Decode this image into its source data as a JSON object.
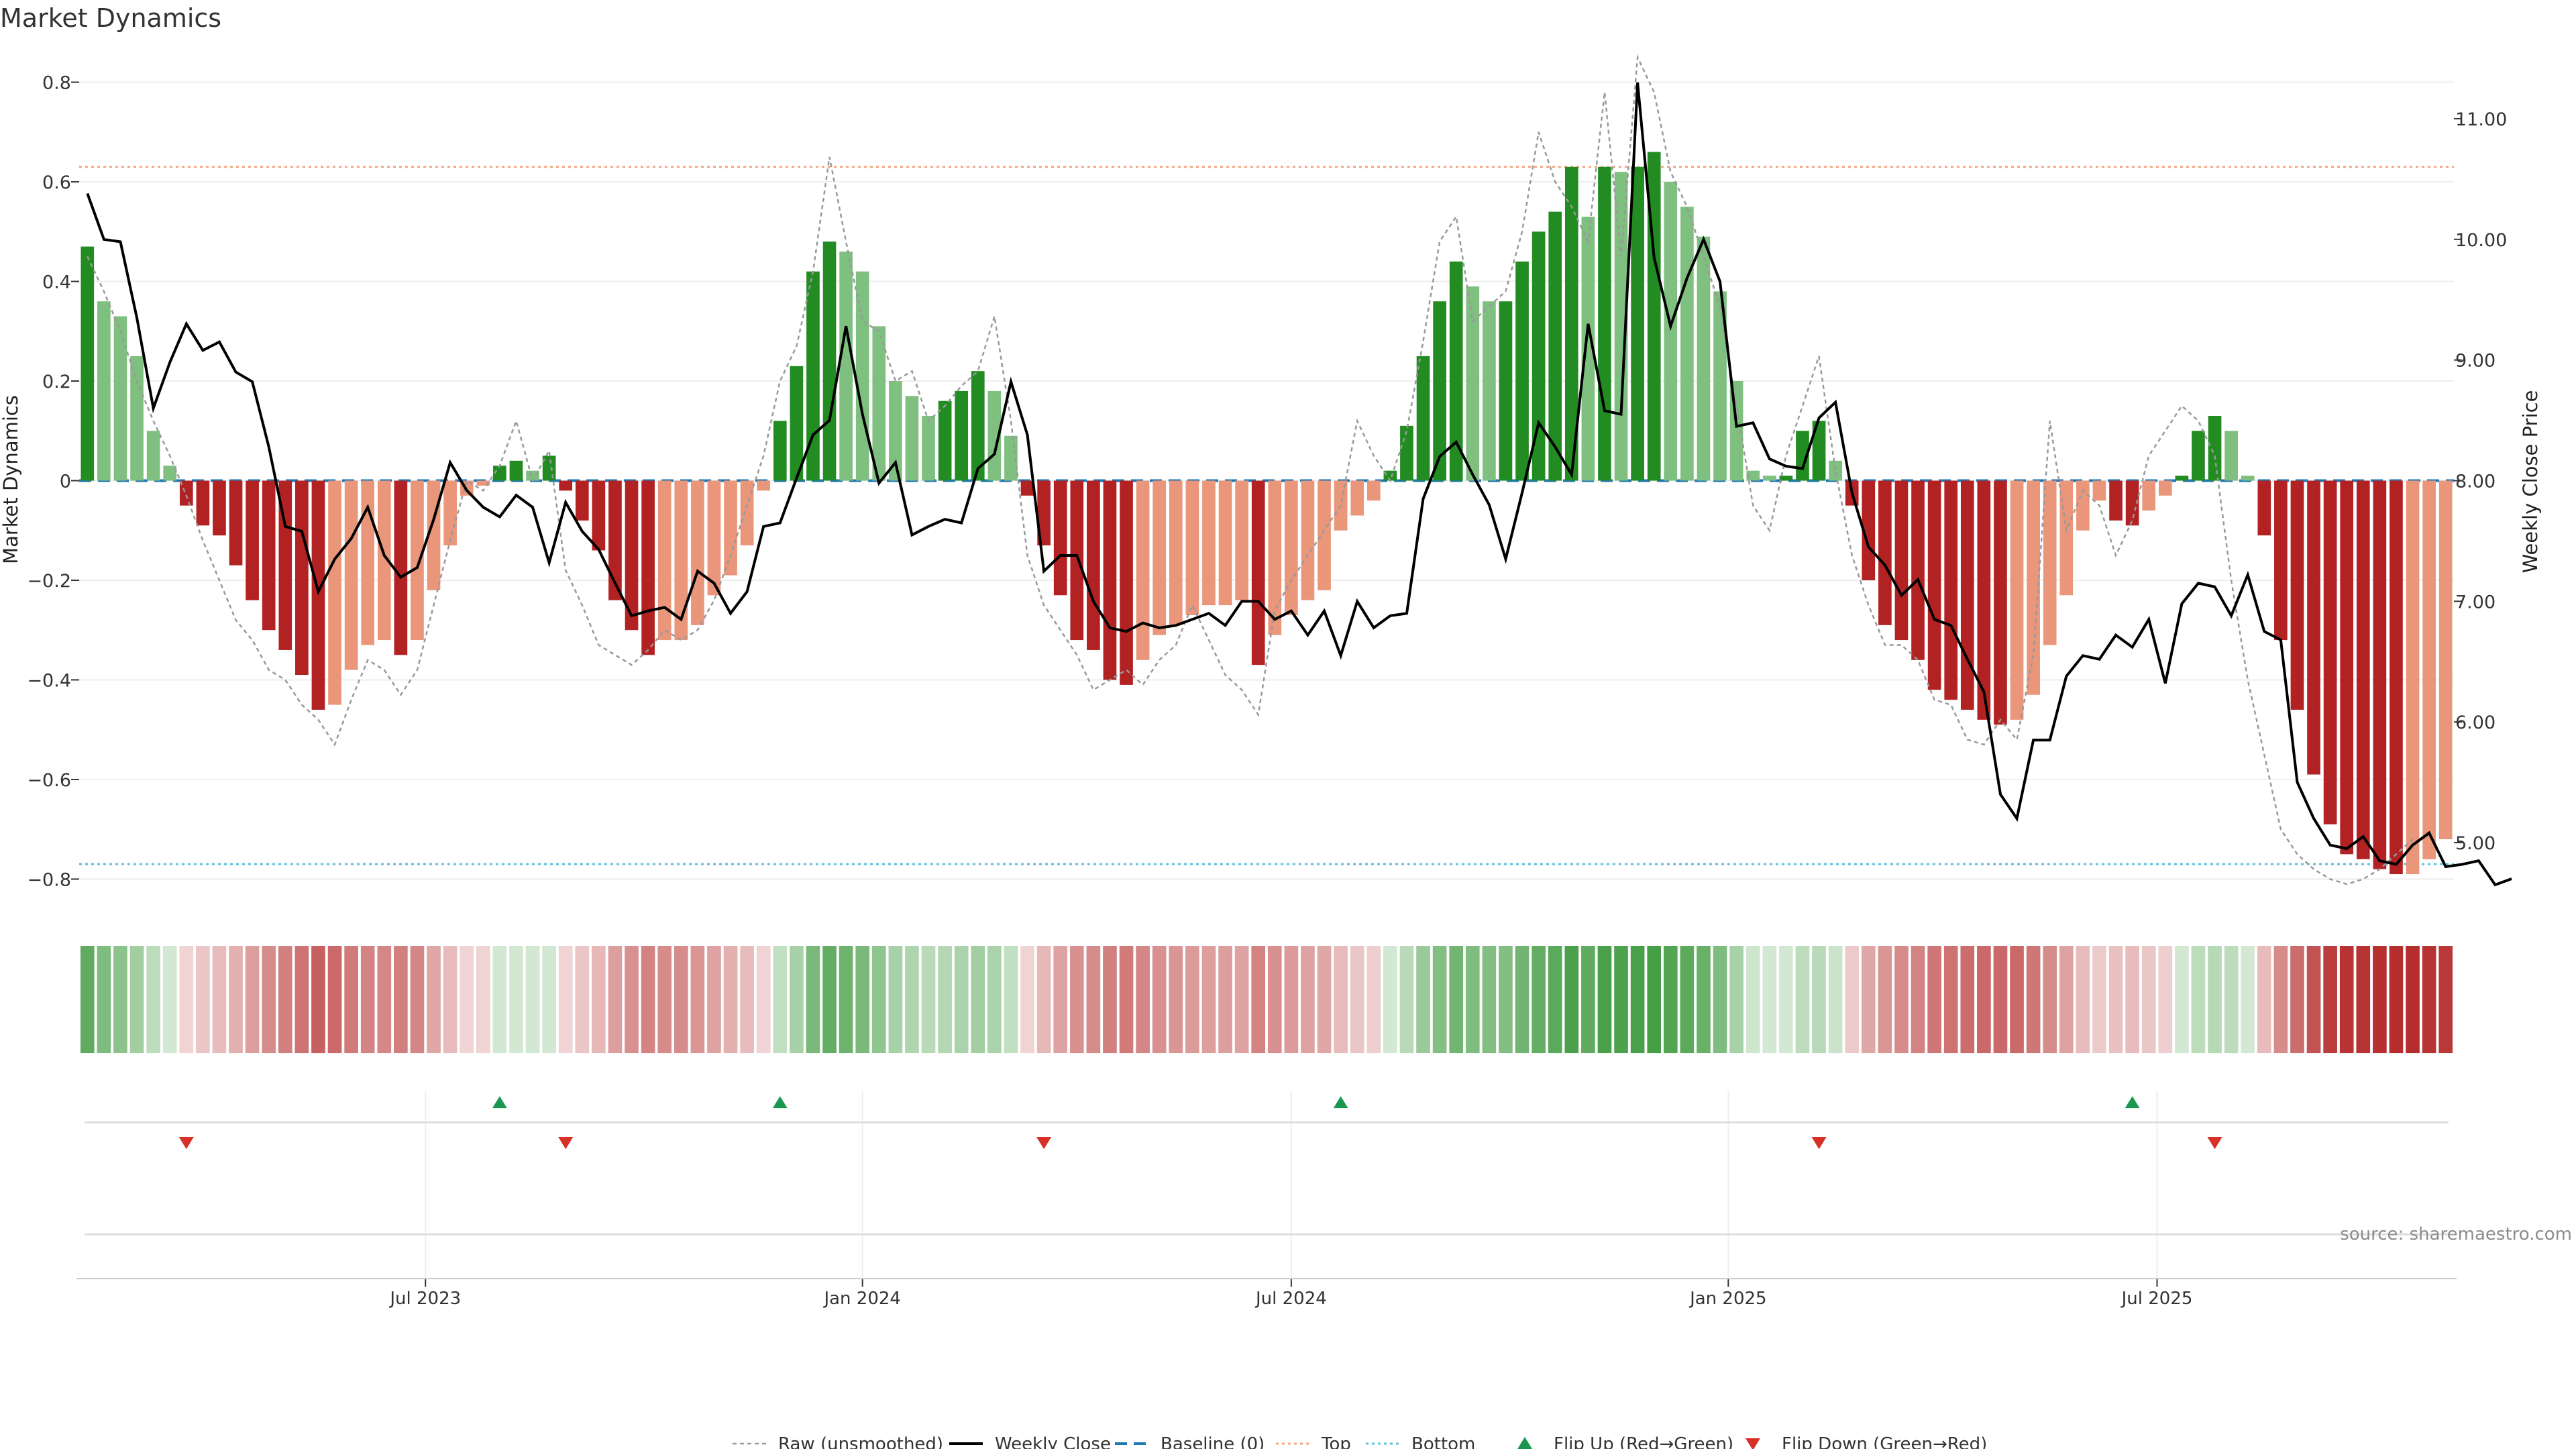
{
  "chart_data": {
    "type": "bar",
    "title": "Market Dynamics",
    "ylabel": "Market Dynamics",
    "y2label": "Weekly Close Price",
    "ylim": [
      -0.86,
      0.86
    ],
    "y2lim": [
      4.45,
      11.55
    ],
    "yticks": [
      -0.8,
      -0.6,
      -0.4,
      -0.2,
      0,
      0.2,
      0.4,
      0.6,
      0.8
    ],
    "ytick_labels": [
      "−0.8",
      "−0.6",
      "−0.4",
      "−0.2",
      "0",
      "0.2",
      "0.4",
      "0.6",
      "0.8"
    ],
    "y2ticks": [
      5,
      6,
      7,
      8,
      9,
      10,
      11
    ],
    "y2tick_labels": [
      "5.00",
      "6.00",
      "7.00",
      "8.00",
      "9.00",
      "10.00",
      "11.00"
    ],
    "xticks": [
      {
        "label": "Jul 2023",
        "week": 21
      },
      {
        "label": "Jan 2024",
        "week": 47.5
      },
      {
        "label": "Jul 2024",
        "week": 73.5
      },
      {
        "label": "Jan 2025",
        "week": 100
      },
      {
        "label": "Jul 2025",
        "week": 126
      }
    ],
    "start_date": "2023-02-06",
    "grid": true,
    "top_threshold": 0.63,
    "bottom_threshold": -0.77,
    "colors": {
      "strong_green": "#228b22",
      "light_green": "#7fbf7f",
      "strong_red": "#b22222",
      "light_red": "#e9967a",
      "close_line": "#000000",
      "raw_line": "#999999",
      "baseline": "#1f77b4",
      "top": "#f4a582",
      "bottom": "#5bc0de",
      "flip_up": "#1a9850",
      "flip_down": "#d73027"
    },
    "momentum": [
      0.47,
      0.36,
      0.33,
      0.25,
      0.1,
      0.03,
      -0.05,
      -0.09,
      -0.11,
      -0.17,
      -0.24,
      -0.3,
      -0.34,
      -0.39,
      -0.46,
      -0.45,
      -0.38,
      -0.33,
      -0.32,
      -0.35,
      -0.32,
      -0.22,
      -0.13,
      -0.03,
      -0.01,
      0.03,
      0.04,
      0.02,
      0.05,
      -0.02,
      -0.08,
      -0.14,
      -0.24,
      -0.3,
      -0.35,
      -0.32,
      -0.32,
      -0.29,
      -0.23,
      -0.19,
      -0.13,
      -0.02,
      0.12,
      0.23,
      0.42,
      0.48,
      0.46,
      0.42,
      0.31,
      0.2,
      0.17,
      0.13,
      0.16,
      0.18,
      0.22,
      0.18,
      0.09,
      -0.03,
      -0.13,
      -0.23,
      -0.32,
      -0.34,
      -0.4,
      -0.41,
      -0.36,
      -0.31,
      -0.29,
      -0.27,
      -0.25,
      -0.25,
      -0.24,
      -0.37,
      -0.31,
      -0.27,
      -0.24,
      -0.22,
      -0.1,
      -0.07,
      -0.04,
      0.02,
      0.11,
      0.25,
      0.36,
      0.44,
      0.39,
      0.36,
      0.36,
      0.44,
      0.5,
      0.54,
      0.63,
      0.53,
      0.63,
      0.62,
      0.63,
      0.66,
      0.6,
      0.55,
      0.49,
      0.38,
      0.2,
      0.02,
      0.01,
      0.01,
      0.1,
      0.12,
      0.04,
      -0.05,
      -0.2,
      -0.29,
      -0.32,
      -0.36,
      -0.42,
      -0.44,
      -0.46,
      -0.48,
      -0.49,
      -0.48,
      -0.43,
      -0.33,
      -0.23,
      -0.1,
      -0.04,
      -0.08,
      -0.09,
      -0.06,
      -0.03,
      0.01,
      0.1,
      0.13,
      0.1,
      0.01,
      -0.11,
      -0.32,
      -0.46,
      -0.59,
      -0.69,
      -0.75,
      -0.76,
      -0.78,
      -0.79,
      -0.79,
      -0.76,
      -0.72
    ],
    "raw": [
      0.45,
      0.38,
      0.3,
      0.2,
      0.12,
      0.05,
      -0.03,
      -0.12,
      -0.2,
      -0.28,
      -0.32,
      -0.38,
      -0.4,
      -0.45,
      -0.48,
      -0.53,
      -0.44,
      -0.36,
      -0.38,
      -0.43,
      -0.38,
      -0.25,
      -0.12,
      0.0,
      -0.02,
      0.03,
      0.12,
      0.0,
      0.06,
      -0.18,
      -0.25,
      -0.33,
      -0.35,
      -0.37,
      -0.34,
      -0.3,
      -0.32,
      -0.3,
      -0.24,
      -0.15,
      -0.05,
      0.05,
      0.2,
      0.27,
      0.42,
      0.65,
      0.48,
      0.32,
      0.3,
      0.2,
      0.22,
      0.12,
      0.15,
      0.19,
      0.22,
      0.33,
      0.12,
      -0.15,
      -0.25,
      -0.3,
      -0.35,
      -0.42,
      -0.4,
      -0.38,
      -0.41,
      -0.36,
      -0.33,
      -0.25,
      -0.32,
      -0.39,
      -0.42,
      -0.47,
      -0.26,
      -0.2,
      -0.15,
      -0.1,
      -0.05,
      0.12,
      0.05,
      0.0,
      0.1,
      0.28,
      0.48,
      0.53,
      0.32,
      0.35,
      0.38,
      0.5,
      0.7,
      0.6,
      0.55,
      0.48,
      0.78,
      0.45,
      0.85,
      0.78,
      0.62,
      0.55,
      0.45,
      0.35,
      0.15,
      -0.05,
      -0.1,
      0.05,
      0.15,
      0.25,
      0.02,
      -0.15,
      -0.25,
      -0.33,
      -0.33,
      -0.36,
      -0.44,
      -0.45,
      -0.52,
      -0.53,
      -0.48,
      -0.52,
      -0.35,
      0.12,
      -0.1,
      -0.02,
      -0.05,
      -0.15,
      -0.08,
      0.05,
      0.1,
      0.15,
      0.12,
      0.05,
      -0.2,
      -0.4,
      -0.55,
      -0.7,
      -0.75,
      -0.78,
      -0.8,
      -0.81,
      -0.8,
      -0.78,
      -0.75,
      -0.72
    ],
    "close": [
      10.38,
      10.0,
      9.98,
      9.35,
      8.6,
      8.98,
      9.3,
      9.08,
      9.15,
      8.9,
      8.82,
      8.28,
      7.62,
      7.58,
      7.08,
      7.35,
      7.52,
      7.78,
      7.38,
      7.2,
      7.28,
      7.68,
      8.15,
      7.92,
      7.78,
      7.7,
      7.88,
      7.78,
      7.32,
      7.82,
      7.58,
      7.43,
      7.15,
      6.88,
      6.92,
      6.95,
      6.85,
      7.25,
      7.15,
      6.9,
      7.08,
      7.62,
      7.65,
      8.02,
      8.38,
      8.5,
      9.28,
      8.55,
      7.98,
      8.15,
      7.55,
      7.62,
      7.68,
      7.65,
      8.1,
      8.22,
      8.82,
      8.38,
      7.25,
      7.38,
      7.38,
      7.0,
      6.78,
      6.75,
      6.82,
      6.78,
      6.8,
      6.85,
      6.9,
      6.8,
      7.0,
      7.0,
      6.85,
      6.92,
      6.72,
      6.92,
      6.55,
      7.0,
      6.78,
      6.88,
      6.9,
      7.85,
      8.2,
      8.32,
      8.05,
      7.8,
      7.35,
      7.9,
      8.48,
      8.28,
      8.05,
      9.3,
      8.58,
      8.55,
      11.3,
      9.85,
      9.28,
      9.68,
      10.0,
      9.65,
      8.45,
      8.48,
      8.18,
      8.12,
      8.1,
      8.52,
      8.65,
      7.9,
      7.45,
      7.3,
      7.05,
      7.18,
      6.85,
      6.8,
      6.52,
      6.25,
      5.4,
      5.2,
      5.85,
      5.85,
      6.38,
      6.55,
      6.52,
      6.72,
      6.62,
      6.85,
      6.32,
      6.98,
      7.15,
      7.12,
      6.88,
      7.22,
      6.75,
      6.68,
      5.5,
      5.2,
      4.98,
      4.95,
      5.05,
      4.85,
      4.82,
      4.98,
      5.08,
      4.8,
      4.82,
      4.85,
      4.65,
      4.7
    ],
    "regime_intensity": [
      0.72,
      0.58,
      0.52,
      0.42,
      0.3,
      0.2,
      0.2,
      0.26,
      0.3,
      0.36,
      0.44,
      0.52,
      0.58,
      0.64,
      0.72,
      0.68,
      0.6,
      0.56,
      0.55,
      0.58,
      0.55,
      0.4,
      0.3,
      0.2,
      0.2,
      0.2,
      0.2,
      0.2,
      0.2,
      0.2,
      0.26,
      0.32,
      0.44,
      0.5,
      0.56,
      0.52,
      0.52,
      0.48,
      0.42,
      0.36,
      0.3,
      0.2,
      0.28,
      0.4,
      0.6,
      0.7,
      0.66,
      0.6,
      0.5,
      0.4,
      0.36,
      0.32,
      0.35,
      0.38,
      0.42,
      0.38,
      0.28,
      0.2,
      0.32,
      0.42,
      0.5,
      0.52,
      0.58,
      0.6,
      0.54,
      0.5,
      0.48,
      0.46,
      0.44,
      0.44,
      0.42,
      0.56,
      0.5,
      0.46,
      0.42,
      0.4,
      0.3,
      0.26,
      0.22,
      0.2,
      0.32,
      0.46,
      0.56,
      0.64,
      0.58,
      0.56,
      0.56,
      0.64,
      0.7,
      0.74,
      0.82,
      0.72,
      0.82,
      0.8,
      0.82,
      0.84,
      0.78,
      0.74,
      0.68,
      0.58,
      0.4,
      0.22,
      0.2,
      0.2,
      0.3,
      0.32,
      0.24,
      0.24,
      0.4,
      0.48,
      0.52,
      0.56,
      0.62,
      0.64,
      0.66,
      0.68,
      0.68,
      0.68,
      0.62,
      0.52,
      0.42,
      0.3,
      0.24,
      0.28,
      0.3,
      0.26,
      0.22,
      0.2,
      0.3,
      0.33,
      0.3,
      0.2,
      0.3,
      0.52,
      0.66,
      0.78,
      0.88,
      0.92,
      0.92,
      0.94,
      0.95,
      0.95,
      0.92,
      0.9
    ],
    "flip_up": [
      25,
      42,
      76,
      124
    ],
    "flip_down": [
      6,
      29,
      58,
      105,
      129
    ],
    "legend": [
      "Raw (unsmoothed)",
      "Weekly Close",
      "Baseline (0)",
      "Top",
      "Bottom",
      "Flip Up (Red→Green)",
      "Flip Down (Green→Red)"
    ],
    "source": "source: sharemaestro.com"
  }
}
